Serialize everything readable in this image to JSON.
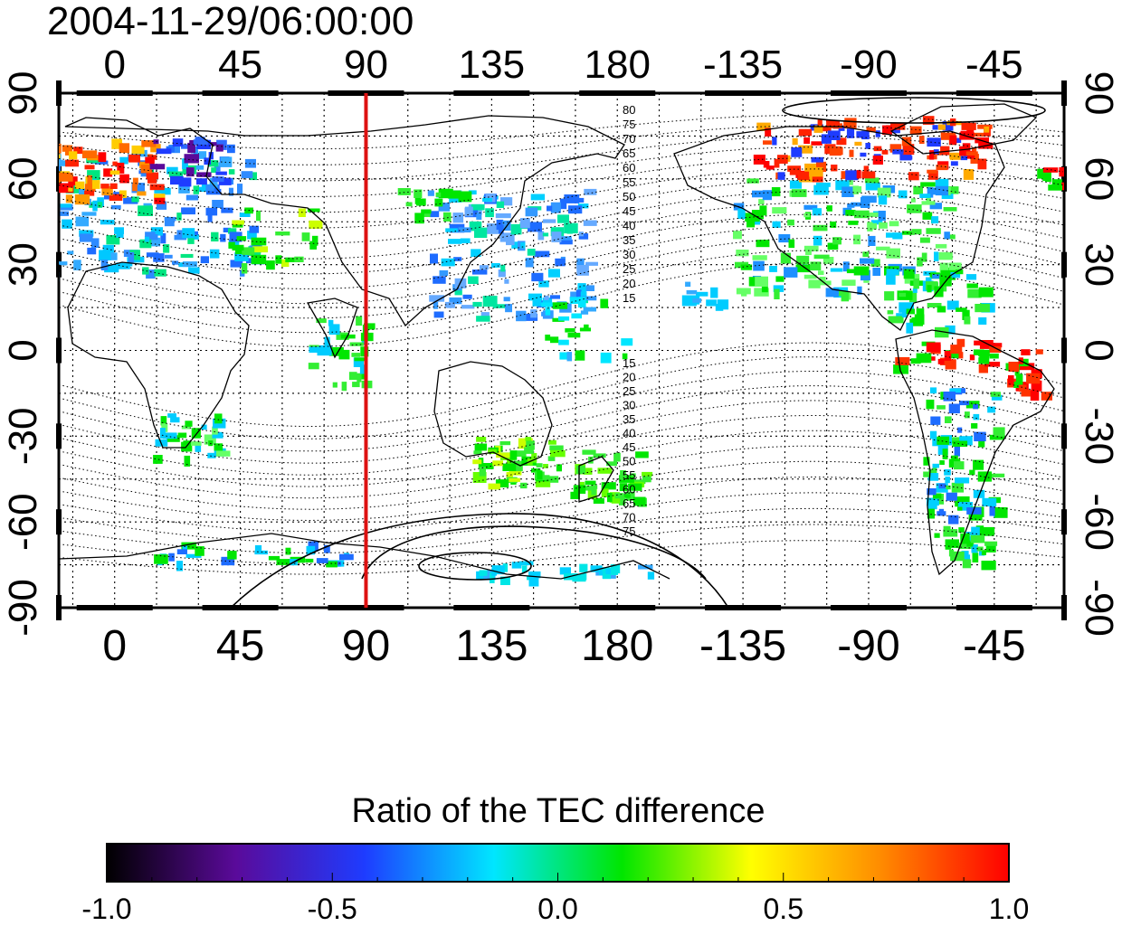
{
  "title": "2004-11-29/06:00:00",
  "lon_ticks": [
    "0",
    "45",
    "90",
    "135",
    "180",
    "-135",
    "-90",
    "-45"
  ],
  "lat_ticks": [
    "90",
    "60",
    "30",
    "0",
    "-30",
    "-60",
    "-90"
  ],
  "contour_labels_north": [
    "80",
    "75",
    "70",
    "65",
    "60",
    "55",
    "50",
    "45",
    "40",
    "35",
    "30",
    "25",
    "20",
    "15"
  ],
  "contour_labels_south": [
    "15",
    "20",
    "25",
    "30",
    "35",
    "40",
    "45",
    "50",
    "55",
    "60",
    "65",
    "70",
    "75"
  ],
  "highlight_meridian_deg": 90,
  "highlight_color": "#dd1111",
  "colorbar": {
    "title": "Ratio of the TEC difference",
    "min": -1.0,
    "max": 1.0,
    "tick_labels": [
      "-1.0",
      "-0.5",
      "0.0",
      "0.5",
      "1.0"
    ],
    "stops": [
      "#000000",
      "#5a0a9a",
      "#1e3cff",
      "#00e6ff",
      "#00e600",
      "#ffff00",
      "#ff8c00",
      "#ff0000"
    ]
  }
}
